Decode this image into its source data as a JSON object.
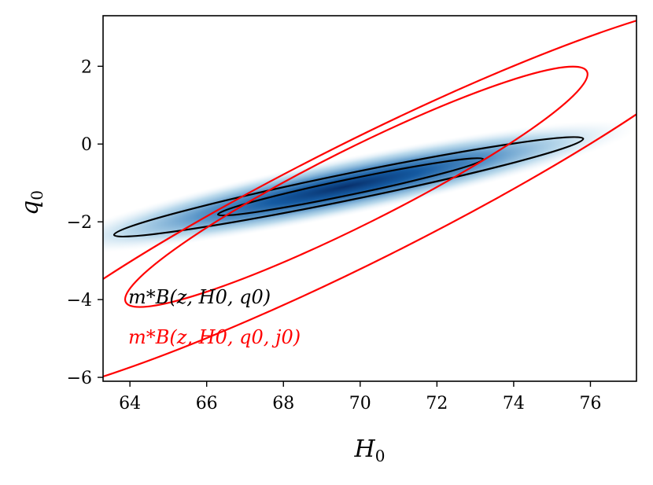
{
  "chart_data": {
    "type": "contour",
    "xlabel": "H",
    "xlabel_sub": "0",
    "ylabel": "q",
    "ylabel_sub": "0",
    "xlim": [
      63.3,
      77.2
    ],
    "ylim": [
      -6.1,
      3.3
    ],
    "xticks": [
      64,
      66,
      68,
      70,
      72,
      74,
      76
    ],
    "yticks": [
      -6,
      -4,
      -2,
      0,
      2
    ],
    "grid": false,
    "legend_position": "bottom-left",
    "colors": {
      "fit_a": "#000000",
      "fit_b": "#ff0000",
      "density": "#08306b"
    },
    "series": [
      {
        "name": "m*B(z, H0, q0)",
        "color": "#000000",
        "density_center": [
          69.6,
          -1.1
        ],
        "contours": [
          {
            "level": "inner",
            "center": [
              69.75,
              -1.1
            ],
            "rx": 3.53,
            "ry": 0.2,
            "angle_deg": -11.8
          },
          {
            "level": "outer",
            "center": [
              69.7,
              -1.1
            ],
            "rx": 6.24,
            "ry": 0.34,
            "angle_deg": -11.6
          }
        ]
      },
      {
        "name": "m*B(z, H0, q0, j0)",
        "color": "#ff0000",
        "contours": [
          {
            "level": "inner",
            "center": [
              69.9,
              -1.1
            ],
            "rx": 6.72,
            "ry": 0.97,
            "angle_deg": -26.6
          },
          {
            "level": "outer",
            "center": [
              70.1,
              -1.45
            ],
            "rx": 11.1,
            "ry": 1.54,
            "angle_deg": -26.6
          }
        ]
      }
    ]
  }
}
